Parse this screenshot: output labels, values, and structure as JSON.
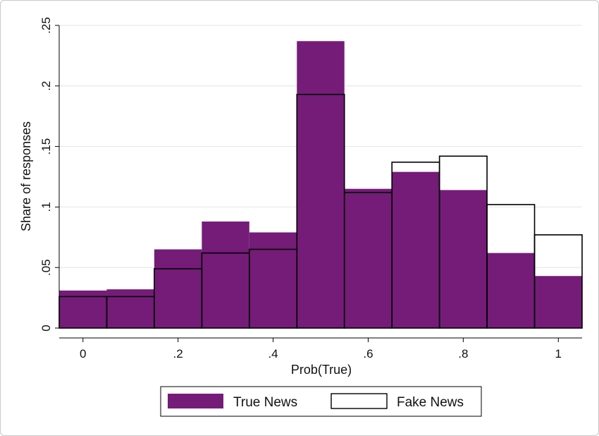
{
  "chart_data": {
    "type": "bar",
    "xlabel": "Prob(True)",
    "ylabel": "Share of responses",
    "x_ticks": [
      "0",
      ".2",
      ".4",
      ".6",
      ".8",
      "1"
    ],
    "x_tick_values": [
      0,
      0.2,
      0.4,
      0.6,
      0.8,
      1
    ],
    "y_ticks": [
      "0",
      ".05",
      ".1",
      ".15",
      ".2",
      ".25"
    ],
    "y_tick_values": [
      0,
      0.05,
      0.1,
      0.15,
      0.2,
      0.25
    ],
    "xlim": [
      -0.05,
      1.05
    ],
    "ylim": [
      0,
      0.25
    ],
    "grid": true,
    "legend_position": "bottom",
    "bins": [
      0,
      0.1,
      0.2,
      0.3,
      0.4,
      0.5,
      0.6,
      0.7,
      0.8,
      0.9,
      1.0
    ],
    "bin_width": 0.1,
    "series": [
      {
        "name": "True News",
        "color": "#741c78",
        "style": "filled",
        "values": [
          0.031,
          0.032,
          0.065,
          0.088,
          0.079,
          0.237,
          0.115,
          0.129,
          0.114,
          0.062,
          0.043
        ]
      },
      {
        "name": "Fake News",
        "color": "#000000",
        "style": "outline",
        "values": [
          0.026,
          0.026,
          0.049,
          0.062,
          0.065,
          0.193,
          0.112,
          0.137,
          0.142,
          0.102,
          0.077
        ]
      }
    ]
  }
}
